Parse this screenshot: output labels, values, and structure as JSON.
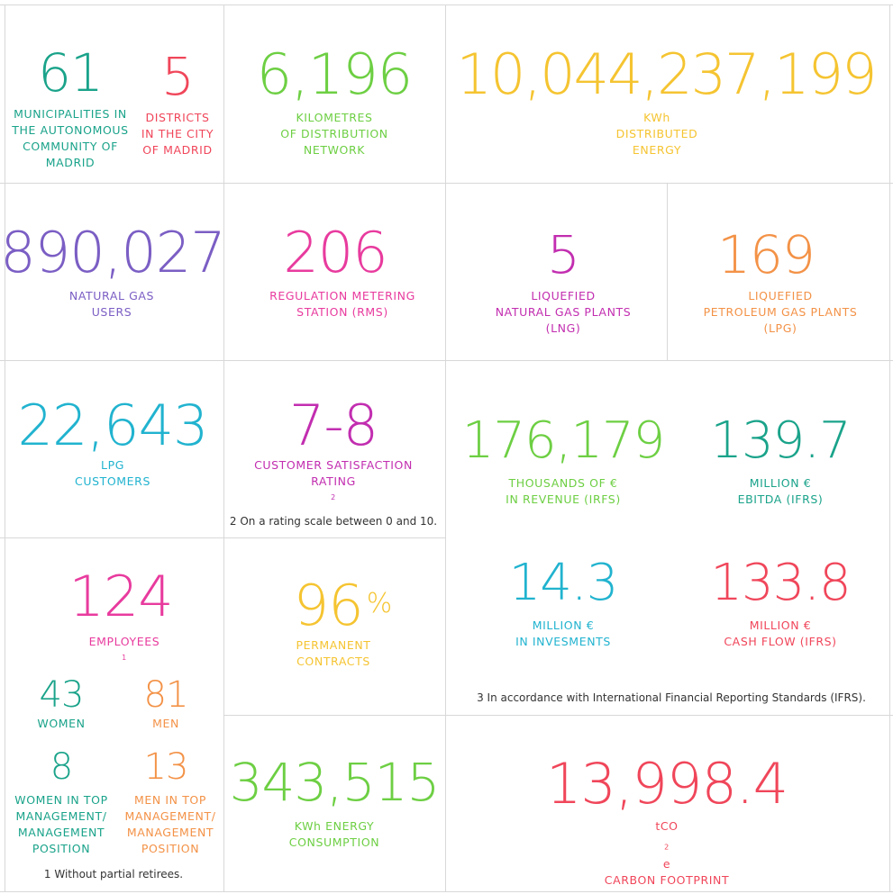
{
  "colors": {
    "teal": "#1aa38a",
    "red": "#f0465a",
    "green": "#6dcf43",
    "yellow": "#f5c431",
    "purple": "#7b5ec4",
    "magenta": "#e83b9e",
    "violet": "#c22eb0",
    "orange": "#f39247",
    "cyan": "#21b3cf",
    "grid": "#d8d8d8"
  },
  "municipalities": {
    "value": "61",
    "line1": "MUNICIPALITIES  IN",
    "line2": "THE AUTONOMOUS",
    "line3": "COMMUNITY OF",
    "line4": "MADRID"
  },
  "districts": {
    "value": "5",
    "line1": "DISTRICTS",
    "line2": "IN THE CITY",
    "line3": "OF MADRID"
  },
  "network": {
    "value": "6,196",
    "line1": "KILOMETRES",
    "line2": "OF DISTRIBUTION",
    "line3": "NETWORK"
  },
  "energy": {
    "value": "10,044,237,199",
    "line1": "KWh",
    "line2": "DISTRIBUTED",
    "line3": "ENERGY"
  },
  "users": {
    "value": "890,027",
    "line1": "NATURAL GAS",
    "line2": "USERS"
  },
  "rms": {
    "value": "206",
    "line1": "REGULATION METERING",
    "line2": "STATION (RMS)"
  },
  "lng": {
    "value": "5",
    "line1": "LIQUEFIED",
    "line2": "NATURAL GAS PLANTS",
    "line3": "(LNG)"
  },
  "lpg_plants": {
    "value": "169",
    "line1": "LIQUEFIED",
    "line2": "PETROLEUM GAS PLANTS",
    "line3": "(LPG)"
  },
  "lpg_customers": {
    "value": "22,643",
    "line1": "LPG",
    "line2": "CUSTOMERS"
  },
  "satisfaction": {
    "value": "7-8",
    "line1": "CUSTOMER SATISFACTION",
    "line2": "RATING",
    "sup": "2",
    "note": "2  On a rating scale between 0 and 10."
  },
  "revenue": {
    "value": "176,179",
    "line1": "THOUSANDS OF €",
    "line2": "IN REVENUE (IRFS)"
  },
  "ebitda": {
    "value": "139.7",
    "line1": "MILLION €",
    "line2": "EBITDA (IFRS)"
  },
  "investments": {
    "value": "14.3",
    "line1": "MILLION €",
    "line2": "IN INVESMENTS"
  },
  "cashflow": {
    "value": "133.8",
    "line1": "MILLION €",
    "line2": "CASH FLOW (IFRS)"
  },
  "ifrs_note": "3  In accordance with International Financial Reporting Standards (IFRS).",
  "employees": {
    "value": "124",
    "label": "EMPLOYEES",
    "sup": "1",
    "note": "1  Without partial retirees."
  },
  "women": {
    "value": "43",
    "label": "WOMEN"
  },
  "men": {
    "value": "81",
    "label": "MEN"
  },
  "women_top": {
    "value": "8",
    "line1": "WOMEN IN TOP",
    "line2": "MANAGEMENT/",
    "line3": "MANAGEMENT",
    "line4": "POSITION"
  },
  "men_top": {
    "value": "13",
    "line1": "MEN IN TOP",
    "line2": "MANAGEMENT/",
    "line3": "MANAGEMENT",
    "line4": "POSITION"
  },
  "contracts": {
    "value": "96",
    "unit": "%",
    "line1": "PERMANENT",
    "line2": "CONTRACTS"
  },
  "consumption": {
    "value": "343,515",
    "line1": "KWh ENERGY",
    "line2": "CONSUMPTION"
  },
  "footprint": {
    "value": "13,998.4",
    "unit_pre": "tCO",
    "unit_sub": "2",
    "unit_post": "e",
    "line1": "CARBON FOOTPRINT"
  }
}
